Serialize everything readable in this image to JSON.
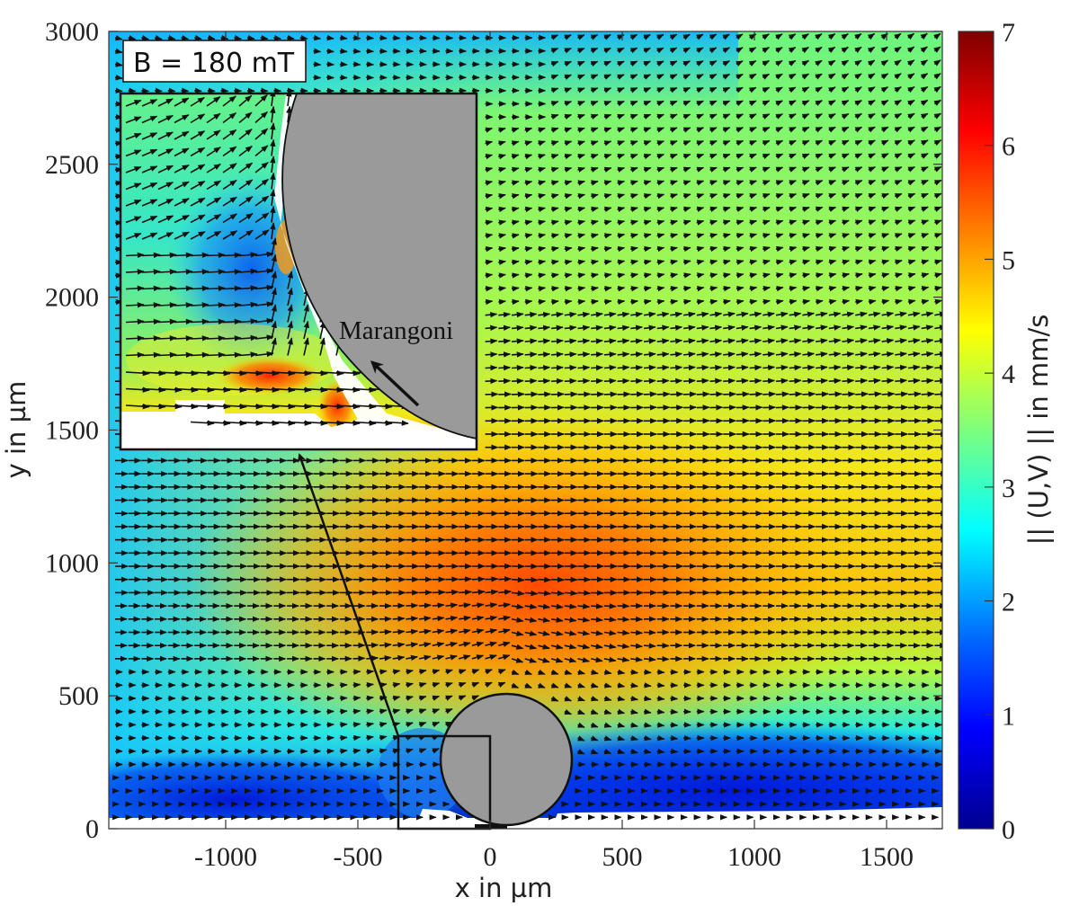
{
  "chart_data": {
    "type": "heatmap",
    "subtype": "quiver-over-contour (PIV velocity field)",
    "title": "",
    "annotation": "B = 180 mT",
    "xlabel": "x in µm",
    "ylabel": "y in µm",
    "colorbar_label": "|| (U,V) || in mm/s",
    "xlim": [
      -1450,
      1700
    ],
    "ylim": [
      0,
      3000
    ],
    "clim": [
      0,
      7
    ],
    "colormap": "jet",
    "x_ticks": [
      -1000,
      -500,
      0,
      500,
      1000,
      1500
    ],
    "x_tick_labels": [
      "-1000",
      "-500",
      "0",
      "500",
      "1000",
      "1500"
    ],
    "y_ticks": [
      0,
      500,
      1000,
      1500,
      2000,
      2500,
      3000
    ],
    "y_tick_labels": [
      "0",
      "500",
      "1000",
      "1500",
      "2000",
      "2500",
      "3000"
    ],
    "colorbar_ticks": [
      0,
      1,
      2,
      3,
      4,
      5,
      6,
      7
    ],
    "colorbar_tick_labels": [
      "0",
      "1",
      "2",
      "3",
      "4",
      "5",
      "6",
      "7"
    ],
    "grid": false,
    "features": {
      "max_velocity_region": {
        "x_um": 250,
        "y_um": 950,
        "magnitude_mm_s": 5.8
      },
      "low_velocity_region": {
        "description": "near bottom wall, y < 200 µm",
        "magnitude_mm_s": 0.3
      },
      "top_region": {
        "description": "upper field, flow up-right",
        "magnitude_mm_s": 3.0
      },
      "upper_left_corner": {
        "magnitude_mm_s": 2.2
      },
      "bubble": {
        "center_x_um": 60,
        "center_y_um": 260,
        "radius_um": 250,
        "fill": "#999999"
      }
    },
    "inset": {
      "label": "Marangoni",
      "zoom_region_um": {
        "x": [
          -350,
          0
        ],
        "y": [
          0,
          350
        ]
      },
      "description": "Zoom of the flow near the left side of the bubble; arrow indicates Marangoni flow upward along interface; local peak ~6 mm/s near the wall"
    }
  },
  "figure": {
    "annotation_box": "B = 180 mT",
    "inset_label": "Marangoni",
    "xlabel": "x in µm",
    "ylabel": "y in µm",
    "colorbar_label": "|| (U,V) || in mm/s",
    "x_tick_labels": [
      "-1000",
      "-500",
      "0",
      "500",
      "1000",
      "1500"
    ],
    "y_tick_labels": [
      "0",
      "500",
      "1000",
      "1500",
      "2000",
      "2500",
      "3000"
    ],
    "cb_tick_labels": [
      "0",
      "1",
      "2",
      "3",
      "4",
      "5",
      "6",
      "7"
    ]
  }
}
